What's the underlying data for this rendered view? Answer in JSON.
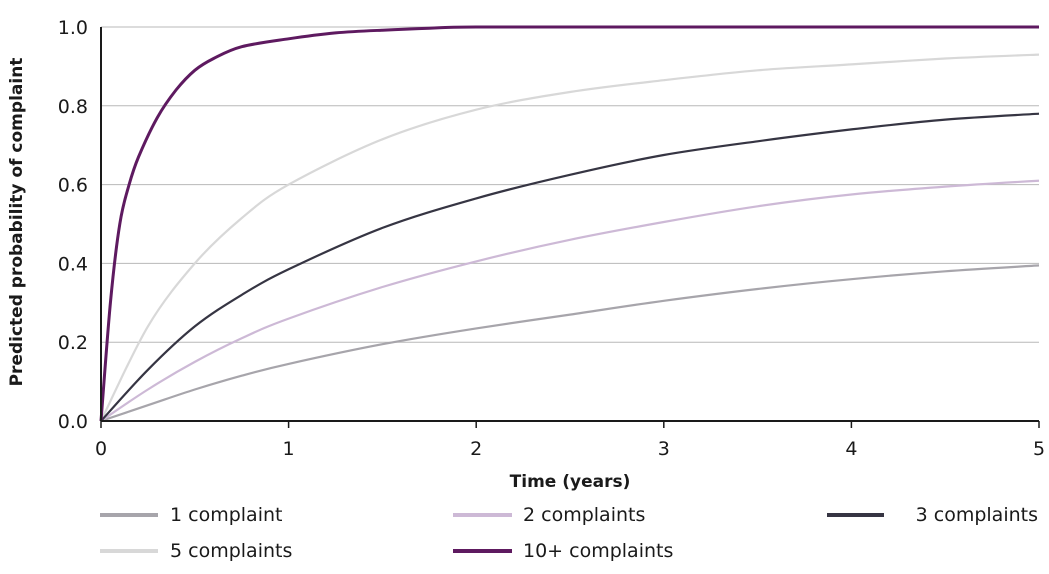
{
  "chart_data": {
    "type": "line",
    "title": "",
    "xlabel": "Time (years)",
    "ylabel": "Predicted probability of complaint",
    "xlim": [
      0,
      5
    ],
    "ylim": [
      0,
      1.0
    ],
    "x_ticks": [
      "0",
      "1",
      "2",
      "3",
      "4",
      "5"
    ],
    "y_ticks": [
      "0.0",
      "0.2",
      "0.4",
      "0.6",
      "0.8",
      "1.0"
    ],
    "grid": "horizontal",
    "legend_position": "bottom",
    "series": [
      {
        "name": "1 complaint",
        "color": "#a7a5ab",
        "x": [
          0,
          0.25,
          0.5,
          0.75,
          1,
          1.5,
          2,
          2.5,
          3,
          3.5,
          4,
          4.5,
          5
        ],
        "y": [
          0,
          0.04,
          0.08,
          0.115,
          0.145,
          0.195,
          0.235,
          0.27,
          0.305,
          0.335,
          0.36,
          0.38,
          0.395
        ]
      },
      {
        "name": "2 complaints",
        "color": "#cdb9d6",
        "x": [
          0,
          0.25,
          0.5,
          0.75,
          1,
          1.5,
          2,
          2.5,
          3,
          3.5,
          4,
          4.5,
          5
        ],
        "y": [
          0,
          0.08,
          0.15,
          0.21,
          0.26,
          0.34,
          0.405,
          0.46,
          0.505,
          0.545,
          0.575,
          0.595,
          0.61
        ]
      },
      {
        "name": "3 complaints",
        "color": "#363543",
        "x": [
          0,
          0.25,
          0.5,
          0.75,
          1,
          1.5,
          2,
          2.5,
          3,
          3.5,
          4,
          4.5,
          5
        ],
        "y": [
          0,
          0.13,
          0.24,
          0.32,
          0.385,
          0.49,
          0.565,
          0.625,
          0.675,
          0.71,
          0.74,
          0.765,
          0.78
        ]
      },
      {
        "name": "5 complaints",
        "color": "#d8d8d8",
        "x": [
          0,
          0.25,
          0.5,
          0.75,
          1,
          1.5,
          2,
          2.5,
          3,
          3.5,
          4,
          4.5,
          5
        ],
        "y": [
          0,
          0.24,
          0.4,
          0.515,
          0.6,
          0.715,
          0.79,
          0.835,
          0.865,
          0.89,
          0.905,
          0.92,
          0.93
        ]
      },
      {
        "name": "10+ complaints",
        "color": "#5e1a60",
        "x": [
          0,
          0.05,
          0.1,
          0.15,
          0.2,
          0.3,
          0.4,
          0.5,
          0.6,
          0.75,
          1,
          1.25,
          1.5,
          1.75,
          2,
          3,
          4,
          5
        ],
        "y": [
          0,
          0.3,
          0.5,
          0.6,
          0.67,
          0.77,
          0.84,
          0.89,
          0.92,
          0.95,
          0.97,
          0.985,
          0.992,
          0.997,
          1.0,
          1.0,
          1.0,
          1.0
        ]
      }
    ]
  }
}
